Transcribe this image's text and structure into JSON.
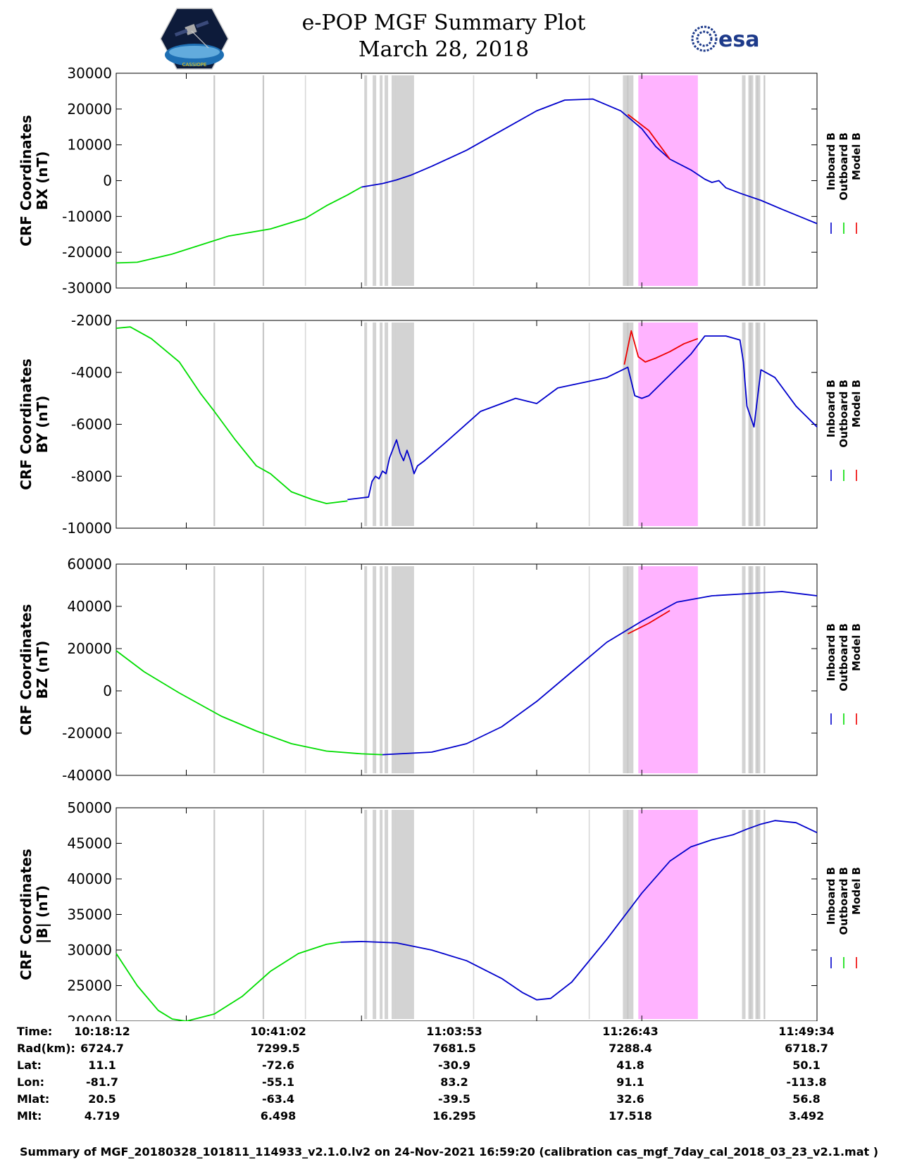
{
  "header": {
    "title_line1": "e-POP MGF Summary Plot",
    "title_line2": "March 28, 2018",
    "logo_left_text": "CASSIOPE",
    "logo_right_text": "esa"
  },
  "colors": {
    "inboard": "#0000cc",
    "outboard": "#00dd00",
    "model": "#ee0000",
    "grey_band": "#d3d3d3",
    "magenta_band": "#ffb3ff"
  },
  "legend": {
    "labels": [
      "Inboard B",
      "Outboard B",
      "Model B"
    ]
  },
  "chart_data": [
    {
      "type": "line",
      "ylabel": "CRF Coordinates BX (nT)",
      "ylabel_lines": [
        "CRF Coordinates",
        "BX (nT)"
      ],
      "ylim": [
        -30000,
        30000
      ],
      "yticks": [
        "30000",
        "20000",
        "10000",
        "0",
        "-10000",
        "-20000",
        "-30000"
      ],
      "ytick_values": [
        30000,
        20000,
        10000,
        0,
        -10000,
        -20000,
        -30000
      ],
      "series": [
        {
          "name": "Outboard B",
          "x": [
            0,
            3,
            8,
            12,
            16,
            22,
            27,
            30,
            33,
            35
          ],
          "y": [
            -23000,
            -22800,
            -20500,
            -18000,
            -15500,
            -13500,
            -10500,
            -7000,
            -4000,
            -1800
          ]
        },
        {
          "name": "Inboard B",
          "x": [
            35,
            38,
            40,
            42,
            45,
            50,
            55,
            60,
            64,
            68,
            72,
            75,
            77,
            79,
            82,
            84,
            85,
            86,
            87,
            89,
            92,
            95,
            100
          ],
          "y": [
            -1800,
            -800,
            200,
            1500,
            4000,
            8500,
            14000,
            19500,
            22500,
            22800,
            19500,
            14500,
            9500,
            6000,
            3000,
            400,
            -500,
            0,
            -2000,
            -3500,
            -5500,
            -8000,
            -12000
          ]
        },
        {
          "name": "Model B",
          "x": [
            73,
            76,
            79
          ],
          "y": [
            18500,
            14000,
            6000
          ]
        }
      ]
    },
    {
      "type": "line",
      "ylabel": "CRF Coordinates BY (nT)",
      "ylabel_lines": [
        "CRF Coordinates",
        "BY (nT)"
      ],
      "ylim": [
        -10000,
        -2000
      ],
      "yticks": [
        "-2000",
        "-4000",
        "-6000",
        "-8000",
        "-10000"
      ],
      "ytick_values": [
        -2000,
        -4000,
        -6000,
        -8000,
        -10000
      ],
      "series": [
        {
          "name": "Outboard B",
          "x": [
            0,
            2,
            5,
            9,
            12,
            14,
            17,
            20,
            22,
            25,
            28,
            30,
            33
          ],
          "y": [
            -2300,
            -2250,
            -2700,
            -3600,
            -4800,
            -5500,
            -6600,
            -7600,
            -7900,
            -8600,
            -8900,
            -9050,
            -8950
          ]
        },
        {
          "name": "Inboard B",
          "x": [
            33,
            36,
            36.5,
            37,
            37.5,
            38,
            38.5,
            39,
            40,
            40.5,
            41,
            41.5,
            42,
            42.5,
            43,
            44,
            47,
            52,
            57,
            60,
            63,
            70,
            73,
            74,
            75,
            76,
            79,
            82,
            84,
            87,
            89,
            89.5,
            90,
            91,
            92,
            94,
            97,
            100
          ],
          "y": [
            -8900,
            -8800,
            -8200,
            -8000,
            -8100,
            -7800,
            -7900,
            -7300,
            -6600,
            -7100,
            -7400,
            -7000,
            -7400,
            -7900,
            -7600,
            -7400,
            -6700,
            -5500,
            -5000,
            -5200,
            -4600,
            -4200,
            -3800,
            -4900,
            -5000,
            -4900,
            -4100,
            -3300,
            -2600,
            -2600,
            -2750,
            -3600,
            -5300,
            -6100,
            -3900,
            -4200,
            -5300,
            -6100
          ]
        },
        {
          "name": "Model B",
          "x": [
            72.5,
            73.5,
            74.5,
            75.5,
            77,
            79,
            81,
            83
          ],
          "y": [
            -3700,
            -2400,
            -3400,
            -3600,
            -3450,
            -3200,
            -2900,
            -2700
          ]
        }
      ]
    },
    {
      "type": "line",
      "ylabel": "CRF Coordinates BZ (nT)",
      "ylabel_lines": [
        "CRF Coordinates",
        "BZ (nT)"
      ],
      "ylim": [
        -40000,
        60000
      ],
      "yticks": [
        "60000",
        "40000",
        "20000",
        "0",
        "-20000",
        "-40000"
      ],
      "ytick_values": [
        60000,
        40000,
        20000,
        0,
        -20000,
        -40000
      ],
      "series": [
        {
          "name": "Outboard B",
          "x": [
            0,
            4,
            9,
            15,
            20,
            25,
            30,
            35,
            38
          ],
          "y": [
            19000,
            9000,
            -1000,
            -12000,
            -19000,
            -25000,
            -28500,
            -29800,
            -30200
          ]
        },
        {
          "name": "Inboard B",
          "x": [
            38,
            45,
            50,
            55,
            60,
            65,
            70,
            75,
            80,
            85,
            90,
            95,
            100
          ],
          "y": [
            -30200,
            -29000,
            -25000,
            -17000,
            -5000,
            9000,
            23000,
            33000,
            42000,
            45000,
            46000,
            47000,
            45000
          ]
        },
        {
          "name": "Model B",
          "x": [
            73,
            76,
            79
          ],
          "y": [
            27000,
            32000,
            38000
          ]
        }
      ]
    },
    {
      "type": "line",
      "ylabel": "CRF Coordinates |B| (nT)",
      "ylabel_lines": [
        "CRF Coordinates",
        "|B| (nT)"
      ],
      "ylim": [
        20000,
        50000
      ],
      "yticks": [
        "50000",
        "45000",
        "40000",
        "35000",
        "30000",
        "25000",
        "20000"
      ],
      "ytick_values": [
        50000,
        45000,
        40000,
        35000,
        30000,
        25000,
        20000
      ],
      "series": [
        {
          "name": "Outboard B",
          "x": [
            0,
            3,
            6,
            8,
            10,
            14,
            18,
            22,
            26,
            30,
            32
          ],
          "y": [
            29500,
            25000,
            21500,
            20300,
            20000,
            21000,
            23500,
            27000,
            29500,
            30800,
            31100
          ]
        },
        {
          "name": "Inboard B",
          "x": [
            32,
            35,
            40,
            45,
            50,
            55,
            58,
            60,
            62,
            65,
            70,
            75,
            79,
            82,
            85,
            88,
            90,
            92,
            94,
            97,
            100
          ],
          "y": [
            31100,
            31200,
            31000,
            30000,
            28500,
            26000,
            24000,
            23000,
            23200,
            25500,
            31500,
            38000,
            42500,
            44500,
            45500,
            46200,
            47000,
            47700,
            48200,
            47900,
            46500
          ]
        }
      ]
    }
  ],
  "shading": {
    "grey_lines": [
      14,
      21,
      73,
      90.5,
      91.5,
      92.5
    ],
    "grey_thin_bands": [
      [
        35.4,
        35.8
      ],
      [
        36.6,
        37.1
      ],
      [
        37.6,
        38.0
      ],
      [
        38.3,
        38.8
      ],
      [
        39.3,
        39.8
      ]
    ],
    "grey_bands": [
      [
        39.8,
        42.5
      ],
      [
        72.3,
        73.8
      ],
      [
        89.3,
        89.8
      ],
      [
        90.2,
        90.9
      ],
      [
        91.2,
        91.9
      ]
    ],
    "magenta_bands": [
      [
        74.5,
        83
      ]
    ],
    "light_lines": [
      27,
      51,
      67.5
    ]
  },
  "x_ticks": [
    10,
    35,
    60,
    75,
    100
  ],
  "info_table": {
    "labels": [
      "Time:",
      "Rad(km):",
      "Lat:",
      "Lon:",
      "Mlat:",
      "Mlt:"
    ],
    "columns": [
      [
        "10:18:12",
        "6724.7",
        "11.1",
        "-81.7",
        "20.5",
        "4.719"
      ],
      [
        "10:41:02",
        "7299.5",
        "-72.6",
        "-55.1",
        "-63.4",
        "6.498"
      ],
      [
        "11:03:53",
        "7681.5",
        "-30.9",
        "83.2",
        "-39.5",
        "16.295"
      ],
      [
        "11:26:43",
        "7288.4",
        "41.8",
        "91.1",
        "32.6",
        "17.518"
      ],
      [
        "11:49:34",
        "6718.7",
        "50.1",
        "-113.8",
        "56.8",
        "3.492"
      ]
    ]
  },
  "footer": "Summary of MGF_20180328_101811_114933_v2.1.0.lv2 on 24-Nov-2021 16:59:20 (calibration cas_mgf_7day_cal_2018_03_23_v2.1.mat )"
}
